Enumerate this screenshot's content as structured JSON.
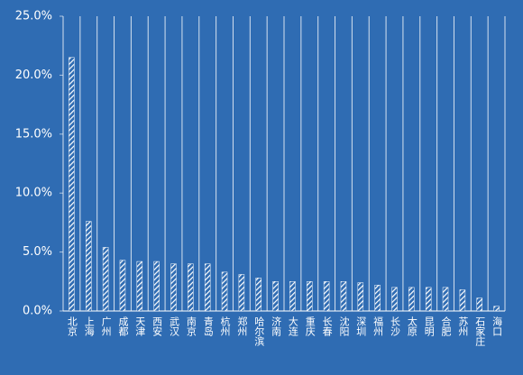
{
  "chart_data": {
    "type": "bar",
    "categories": [
      "北京",
      "上海",
      "广州",
      "成都",
      "天津",
      "西安",
      "武汉",
      "南京",
      "青岛",
      "杭州",
      "郑州",
      "哈尔滨",
      "济南",
      "大连",
      "重庆",
      "长春",
      "沈阳",
      "深圳",
      "福州",
      "长沙",
      "太原",
      "昆明",
      "合肥",
      "苏州",
      "石家庄",
      "海口"
    ],
    "values": [
      21.5,
      7.6,
      5.4,
      4.3,
      4.2,
      4.2,
      4.0,
      4.0,
      4.0,
      3.3,
      3.1,
      2.8,
      2.5,
      2.5,
      2.5,
      2.5,
      2.5,
      2.4,
      2.2,
      2.0,
      2.0,
      2.0,
      2.0,
      1.8,
      1.1,
      0.4
    ],
    "color": "#ffffff",
    "ylim": [
      0,
      25
    ],
    "yticks": [
      {
        "value": 0,
        "label": "0.0%"
      },
      {
        "value": 5,
        "label": "5.0%"
      },
      {
        "value": 10,
        "label": "10.0%"
      },
      {
        "value": 15,
        "label": "15.0%"
      },
      {
        "value": 20,
        "label": "20.0%"
      },
      {
        "value": 25,
        "label": "25.0%"
      }
    ]
  }
}
